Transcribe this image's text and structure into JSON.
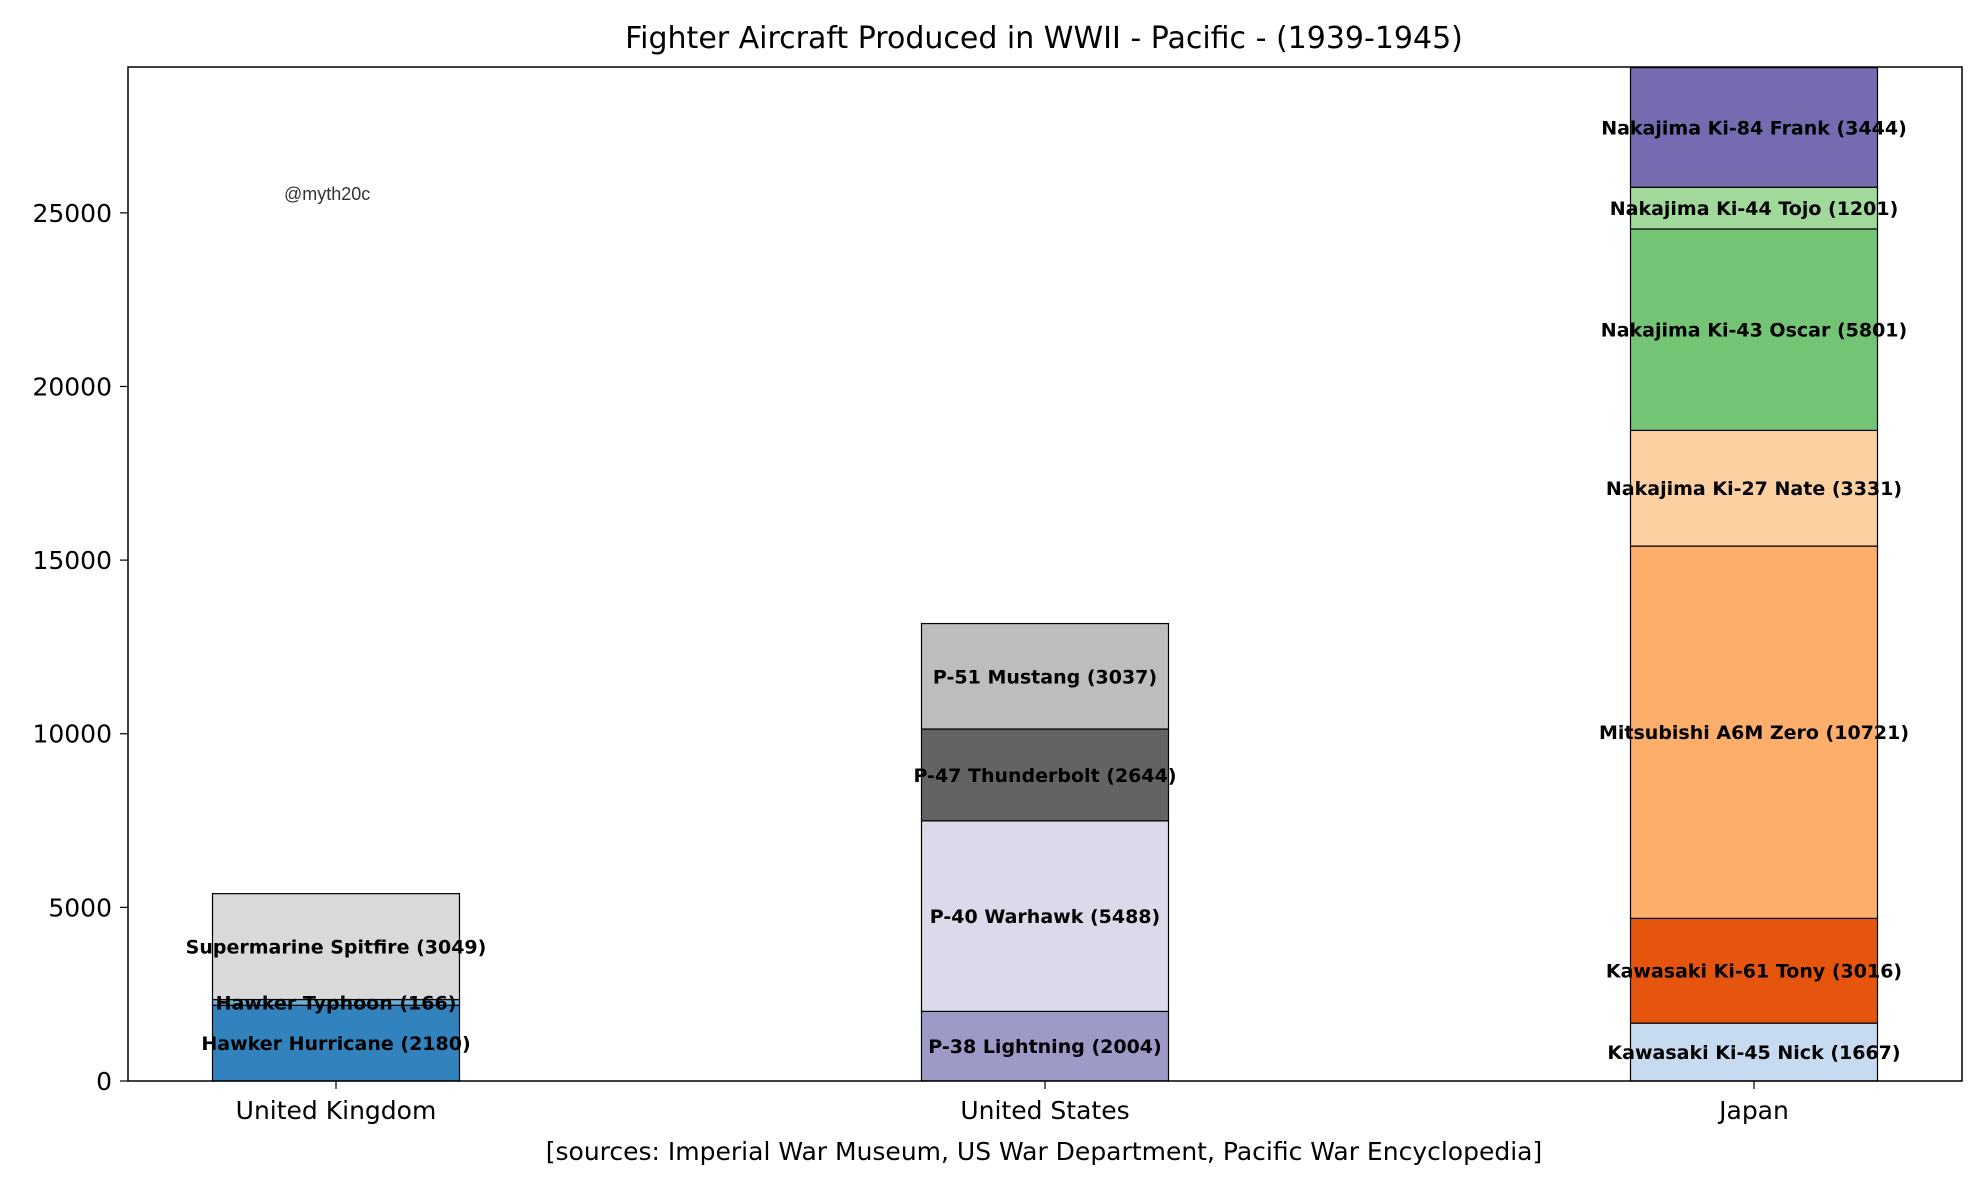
{
  "chart_data": {
    "type": "bar",
    "stacked": true,
    "title": "Fighter Aircraft Produced in WWII - Pacific - (1939-1945)",
    "xlabel": "[sources: Imperial War Museum, US War Department, Pacific War Encyclopedia]",
    "ylabel": "",
    "ylim": [
      0,
      29200
    ],
    "yticks": [
      0,
      5000,
      10000,
      15000,
      20000,
      25000
    ],
    "watermark": "@myth20c",
    "categories": [
      "United Kingdom",
      "United States",
      "Japan"
    ],
    "bars": [
      {
        "category": "United Kingdom",
        "segments": [
          {
            "name": "Hawker Hurricane",
            "value": 2180,
            "label": "Hawker Hurricane (2180)",
            "color": "#3182bd"
          },
          {
            "name": "Hawker Typhoon",
            "value": 166,
            "label": "Hawker Typhoon (166)",
            "color": "#6baed6"
          },
          {
            "name": "Supermarine Spitfire",
            "value": 3049,
            "label": "Supermarine Spitfire (3049)",
            "color": "#d9d9d9"
          }
        ]
      },
      {
        "category": "United States",
        "segments": [
          {
            "name": "P-38 Lightning",
            "value": 2004,
            "label": "P-38 Lightning (2004)",
            "color": "#9e9ac8"
          },
          {
            "name": "P-40 Warhawk",
            "value": 5488,
            "label": "P-40 Warhawk (5488)",
            "color": "#dadaeb"
          },
          {
            "name": "P-47 Thunderbolt",
            "value": 2644,
            "label": "P-47 Thunderbolt (2644)",
            "color": "#636363"
          },
          {
            "name": "P-51 Mustang",
            "value": 3037,
            "label": "P-51 Mustang (3037)",
            "color": "#bdbdbd"
          }
        ]
      },
      {
        "category": "Japan",
        "segments": [
          {
            "name": "Kawasaki Ki-45 Nick",
            "value": 1667,
            "label": "Kawasaki Ki-45 Nick (1667)",
            "color": "#c6dbef"
          },
          {
            "name": "Kawasaki Ki-61 Tony",
            "value": 3016,
            "label": "Kawasaki Ki-61 Tony (3016)",
            "color": "#e6550d"
          },
          {
            "name": "Mitsubishi A6M Zero",
            "value": 10721,
            "label": "Mitsubishi A6M Zero (10721)",
            "color": "#fdae6b"
          },
          {
            "name": "Nakajima Ki-27 Nate",
            "value": 3331,
            "label": "Nakajima Ki-27 Nate (3331)",
            "color": "#fdd0a2"
          },
          {
            "name": "Nakajima Ki-43 Oscar",
            "value": 5801,
            "label": "Nakajima Ki-43 Oscar (5801)",
            "color": "#74c476"
          },
          {
            "name": "Nakajima Ki-44 Tojo",
            "value": 1201,
            "label": "Nakajima Ki-44 Tojo (1201)",
            "color": "#a1d99b"
          },
          {
            "name": "Nakajima Ki-84 Frank",
            "value": 3444,
            "label": "Nakajima Ki-84 Frank (3444)",
            "color": "#756bb1"
          }
        ]
      }
    ]
  }
}
